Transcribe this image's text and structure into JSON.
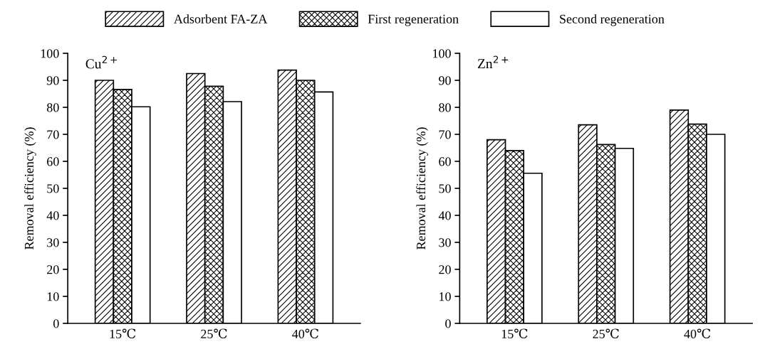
{
  "chart_data": [
    {
      "type": "bar",
      "categories": [
        "15℃",
        "25℃",
        "40℃"
      ],
      "ylabel": "Removal efficiency (%)",
      "ylim": [
        0,
        100
      ],
      "yticks": [
        0,
        10,
        20,
        30,
        40,
        50,
        60,
        70,
        80,
        90,
        100
      ],
      "grid": false,
      "legend": "top",
      "annotations": [
        "Cu$^{2+}$"
      ],
      "series": [
        {
          "name": "Adsorbent FA-ZA",
          "color": "#000000",
          "values": [
            90,
            92.5,
            93.8
          ]
        },
        {
          "name": "First regeneration",
          "color": "#000000",
          "values": [
            86.6,
            87.8,
            90
          ]
        },
        {
          "name": "Second regeneration",
          "color": "#ffffff",
          "values": [
            80.2,
            82.1,
            85.7
          ]
        }
      ]
    },
    {
      "type": "bar",
      "categories": [
        "15℃",
        "25℃",
        "40℃"
      ],
      "ylabel": "Removal efficiency (%)",
      "ylim": [
        0,
        100
      ],
      "yticks": [
        0,
        10,
        20,
        30,
        40,
        50,
        60,
        70,
        80,
        90,
        100
      ],
      "grid": false,
      "legend": "top",
      "annotations": [
        "Zn$^{2+}$"
      ],
      "series": [
        {
          "color": "#000000",
          "values": [
            68,
            73.5,
            79
          ]
        },
        {
          "color": "#000000",
          "values": [
            64,
            66.2,
            73.8
          ]
        },
        {
          "color": "#ffffff",
          "values": [
            55.6,
            64.8,
            70
          ]
        }
      ]
    }
  ]
}
